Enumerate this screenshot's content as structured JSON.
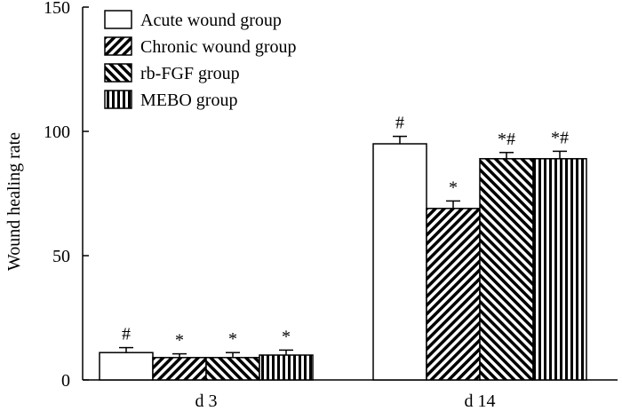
{
  "chart_data": {
    "type": "bar",
    "title": "",
    "xlabel": "",
    "ylabel": "Wound healing  rate",
    "ylim": [
      0,
      150
    ],
    "yticks": [
      0,
      50,
      100,
      150
    ],
    "categories": [
      "d 3",
      "d 14"
    ],
    "legend_position": "top-left",
    "grid": false,
    "series": [
      {
        "name": "Acute wound group",
        "pattern": "open",
        "values": [
          11,
          95
        ],
        "errors": [
          2,
          3
        ],
        "annotations": [
          "#",
          "#"
        ]
      },
      {
        "name": "Chronic wound group",
        "pattern": "diagonal-right",
        "values": [
          9,
          69
        ],
        "errors": [
          1.5,
          3
        ],
        "annotations": [
          "*",
          "*"
        ]
      },
      {
        "name": "rb-FGF group",
        "pattern": "diagonal-left",
        "values": [
          9,
          89
        ],
        "errors": [
          2,
          2.5
        ],
        "annotations": [
          "*",
          "*#"
        ]
      },
      {
        "name": "MEBO group",
        "pattern": "vertical",
        "values": [
          10,
          89
        ],
        "errors": [
          2,
          3
        ],
        "annotations": [
          "*",
          "*#"
        ]
      }
    ]
  },
  "colors": {
    "ink": "#000000",
    "fill": "#ffffff"
  }
}
